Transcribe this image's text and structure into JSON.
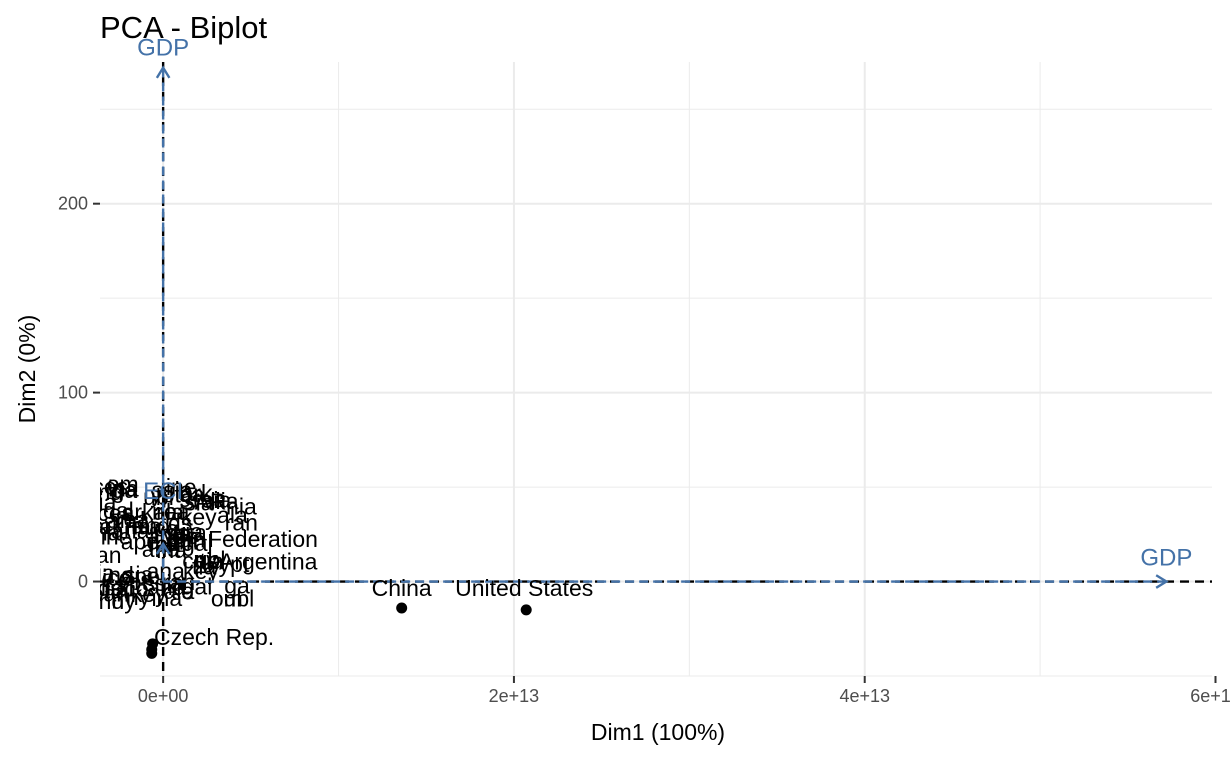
{
  "chart_data": {
    "type": "scatter",
    "title": "PCA - Biplot",
    "xlabel": "Dim1 (100%)",
    "ylabel": "Dim2 (0%)",
    "xlim": [
      -3600000000000.0,
      59800000000000.0
    ],
    "ylim": [
      -50,
      275
    ],
    "x_ticks": [
      {
        "value": 0,
        "label": "0e+00"
      },
      {
        "value": 20000000000000.0,
        "label": "2e+13"
      },
      {
        "value": 40000000000000.0,
        "label": "4e+13"
      },
      {
        "value": 60000000000000.0,
        "label": "6e+13"
      }
    ],
    "y_ticks": [
      {
        "value": 0,
        "label": "0"
      },
      {
        "value": 100,
        "label": "100"
      },
      {
        "value": 200,
        "label": "200"
      }
    ],
    "grid": true,
    "reference_lines": {
      "x": 0,
      "y": 0
    },
    "colors": {
      "variables": "#4472a8",
      "points": "#000000",
      "grid": "#ebebeb"
    },
    "variables": [
      {
        "name": "GDP",
        "x": 57200000000000.0,
        "y": 0
      },
      {
        "name": "ECI",
        "x": 0,
        "y": 20
      },
      {
        "name": "GDP",
        "x": 0,
        "y": 272
      }
    ],
    "points": [
      {
        "label": "China",
        "x": 13600000000000.0,
        "y": -14
      },
      {
        "label": "United States",
        "x": 20700000000000.0,
        "y": -15
      },
      {
        "label": "",
        "x": -600000000000.0,
        "y": -33
      },
      {
        "label": "",
        "x": -650000000000.0,
        "y": -36
      },
      {
        "label": "",
        "x": -650000000000.0,
        "y": -38
      },
      {
        "label": "Czech Rep.",
        "x": -400000000000.0,
        "y": -31
      },
      {
        "label": "SAR",
        "x": 100000000000.0,
        "y": 38
      },
      {
        "label": "Federation",
        "x": 1700000000000.0,
        "y": 20
      },
      {
        "label": "Argentina",
        "x": 2000000000000.0,
        "y": 8
      },
      {
        "label": "",
        "x": -2000000000000.0,
        "y": 38
      },
      {
        "label": "",
        "x": -1500000000000.0,
        "y": 30
      },
      {
        "label": "",
        "x": -1000000000000.0,
        "y": 26
      },
      {
        "label": "",
        "x": -2000000000000.0,
        "y": 22
      },
      {
        "label": "",
        "x": -1500000000000.0,
        "y": 15
      },
      {
        "label": "",
        "x": -800000000000.0,
        "y": 10
      },
      {
        "label": "",
        "x": -2000000000000.0,
        "y": 5
      },
      {
        "label": "",
        "x": -1200000000000.0,
        "y": 0
      },
      {
        "label": "",
        "x": -2000000000000.0,
        "y": -6
      },
      {
        "label": "",
        "x": -1000000000000.0,
        "y": -12
      },
      {
        "label": "",
        "x": -500000000000.0,
        "y": -20
      }
    ]
  }
}
